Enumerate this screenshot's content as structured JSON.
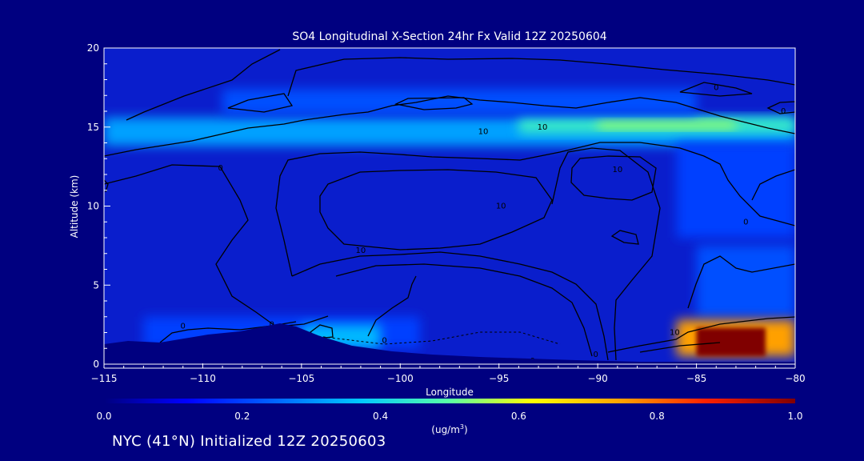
{
  "chart_data": {
    "type": "heatmap",
    "title": "SO4 Longitudinal X-Section 24hr  Fx Valid 12Z 20250604",
    "xlabel": "Longitude",
    "ylabel": "Altitude (km)",
    "xlim": [
      -115,
      -80
    ],
    "ylim": [
      0,
      20
    ],
    "x_ticks": [
      -115,
      -110,
      -105,
      -100,
      -95,
      -90,
      -85,
      -80
    ],
    "x_tick_labels": [
      "−115",
      "−110",
      "−105",
      "−100",
      "−95",
      "−90",
      "−85",
      "−80"
    ],
    "y_ticks": [
      0,
      5,
      10,
      15,
      20
    ],
    "y_tick_labels": [
      "0",
      "5",
      "10",
      "15",
      "20"
    ],
    "colorbar": {
      "min": 0.0,
      "max": 1.0,
      "ticks": [
        0.0,
        0.2,
        0.4,
        0.6,
        0.8,
        1.0
      ],
      "tick_labels": [
        "0.0",
        "0.2",
        "0.4",
        "0.6",
        "0.8",
        "1.0"
      ],
      "units_label": "(ug/m",
      "units_superscript": "3",
      "units_suffix": ")"
    },
    "concentration_regions": [
      {
        "lon_min": -115,
        "lon_max": -80,
        "alt_min": 13.8,
        "alt_max": 15.6,
        "value": 0.32
      },
      {
        "lon_min": -94,
        "lon_max": -80,
        "alt_min": 14.6,
        "alt_max": 15.6,
        "value": 0.45
      },
      {
        "lon_min": -90,
        "lon_max": -83,
        "alt_min": 14.9,
        "alt_max": 15.4,
        "value": 0.55
      },
      {
        "lon_min": -109,
        "lon_max": -85,
        "alt_min": 15.8,
        "alt_max": 17.4,
        "value": 0.22
      },
      {
        "lon_min": -86,
        "lon_max": -80,
        "alt_min": 8.0,
        "alt_max": 14.0,
        "value": 0.2
      },
      {
        "lon_min": -85,
        "lon_max": -80,
        "alt_min": 3.0,
        "alt_max": 7.5,
        "value": 0.22
      },
      {
        "lon_min": -113,
        "lon_max": -99,
        "alt_min": 1.0,
        "alt_max": 3.0,
        "value": 0.2
      },
      {
        "lon_min": -105,
        "lon_max": -101,
        "alt_min": 1.0,
        "alt_max": 2.5,
        "value": 0.35
      },
      {
        "lon_min": -86,
        "lon_max": -80,
        "alt_min": 0.5,
        "alt_max": 2.8,
        "value": 0.75
      },
      {
        "lon_min": -85,
        "lon_max": -81.5,
        "alt_min": 0.5,
        "alt_max": 2.3,
        "value": 1.0
      }
    ],
    "contour_labels": [
      {
        "text": "10",
        "lon": -95.8,
        "alt": 14.7
      },
      {
        "text": "10",
        "lon": -92.8,
        "alt": 15.0
      },
      {
        "text": "10",
        "lon": -94.9,
        "alt": 10.0
      },
      {
        "text": "10",
        "lon": -102.0,
        "alt": 7.2
      },
      {
        "text": "10",
        "lon": -89.0,
        "alt": 12.3
      },
      {
        "text": "10",
        "lon": -86.1,
        "alt": 2.0
      },
      {
        "text": "0",
        "lon": -84.0,
        "alt": 17.5
      },
      {
        "text": "0",
        "lon": -80.6,
        "alt": 16.0
      },
      {
        "text": "0",
        "lon": -109.1,
        "alt": 12.4
      },
      {
        "text": "0",
        "lon": -82.5,
        "alt": 9.0
      },
      {
        "text": "0",
        "lon": -111.0,
        "alt": 2.4
      },
      {
        "text": "0",
        "lon": -106.5,
        "alt": 2.5
      },
      {
        "text": "0",
        "lon": -100.8,
        "alt": 1.5
      },
      {
        "text": "0",
        "lon": -90.1,
        "alt": 0.6
      },
      {
        "text": "0",
        "lon": -93.3,
        "alt": 0.2
      }
    ]
  },
  "footer": {
    "text": "NYC (41°N) Initialized 12Z 20250603"
  },
  "colors": {
    "background": "#000080",
    "plot_background": "#0a1ecc",
    "contour": "#000000",
    "axis": "#ffffff"
  }
}
